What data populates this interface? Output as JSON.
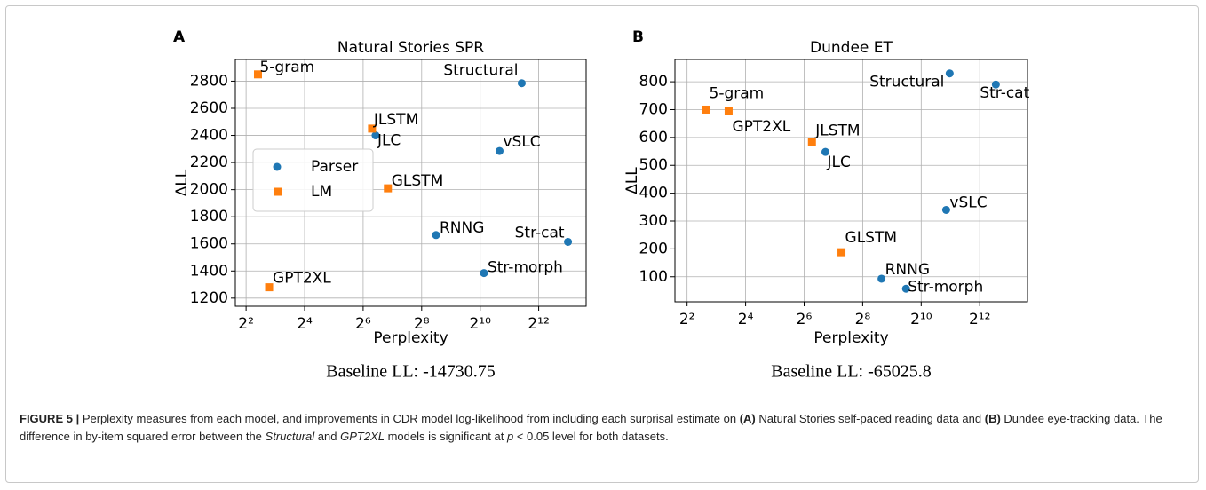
{
  "chart_data": [
    {
      "type": "scatter",
      "panel": "A",
      "title": "Natural Stories SPR",
      "xlabel": "Perplexity",
      "ylabel": "ΔLL",
      "note": "Baseline LL: -14730.75",
      "xscale": "log",
      "xbase": 2,
      "xlim": [
        3.1,
        12600
      ],
      "ylim": [
        1140,
        2960
      ],
      "xticks": [
        {
          "value": 4,
          "label": "2²"
        },
        {
          "value": 16,
          "label": "2⁴"
        },
        {
          "value": 64,
          "label": "2⁶"
        },
        {
          "value": 256,
          "label": "2⁸"
        },
        {
          "value": 1024,
          "label": "2¹⁰"
        },
        {
          "value": 4096,
          "label": "2¹²"
        }
      ],
      "yticks": [
        1200,
        1400,
        1600,
        1800,
        2000,
        2200,
        2400,
        2600,
        2800
      ],
      "grid": true,
      "legend": "center left",
      "series": [
        {
          "name": "Parser",
          "color": "#1f77b4",
          "marker": "circle",
          "labels": [
            "Structural",
            "JLC",
            "vSLC",
            "RNNG",
            "Str-cat",
            "Str-morph"
          ],
          "x": [
            2740,
            86,
            1620,
            360,
            8200,
            1120
          ],
          "values": [
            2785,
            2400,
            2285,
            1665,
            1615,
            1385
          ]
        },
        {
          "name": "LM",
          "color": "#ff7f0e",
          "marker": "square",
          "labels": [
            "5-gram",
            "JLSTM",
            "GLSTM",
            "GPT2XL"
          ],
          "x": [
            5.3,
            79,
            115,
            6.9
          ],
          "values": [
            2850,
            2450,
            2010,
            1280
          ]
        }
      ]
    },
    {
      "type": "scatter",
      "panel": "B",
      "title": "Dundee ET",
      "xlabel": "Perplexity",
      "ylabel": "ΔLL",
      "note": "Baseline LL: -65025.8",
      "xscale": "log",
      "xbase": 2,
      "xlim": [
        3.0,
        12700
      ],
      "ylim": [
        10,
        880
      ],
      "xticks": [
        {
          "value": 4,
          "label": "2²"
        },
        {
          "value": 16,
          "label": "2⁴"
        },
        {
          "value": 64,
          "label": "2⁶"
        },
        {
          "value": 256,
          "label": "2⁸"
        },
        {
          "value": 1024,
          "label": "2¹⁰"
        },
        {
          "value": 4096,
          "label": "2¹²"
        }
      ],
      "yticks": [
        100,
        200,
        300,
        400,
        500,
        600,
        700,
        800
      ],
      "grid": true,
      "series": [
        {
          "color": "#1f77b4",
          "marker": "circle",
          "labels": [
            "Structural",
            "JLC",
            "vSLC",
            "RNNG",
            "Str-cat",
            "Str-morph"
          ],
          "x": [
            2010,
            106,
            1850,
            400,
            6000,
            715
          ],
          "values": [
            830,
            548,
            340,
            93,
            790,
            57
          ]
        },
        {
          "color": "#ff7f0e",
          "marker": "square",
          "labels": [
            "5-gram",
            "GPT2XL",
            "JLSTM",
            "GLSTM"
          ],
          "x": [
            6.2,
            10.7,
            77,
            155
          ],
          "values": [
            700,
            695,
            585,
            188
          ]
        }
      ]
    }
  ],
  "caption": [
    "FIGURE 5 |",
    " Perplexity measures from each model, and improvements in CDR model log-likelihood from including each surprisal estimate on ",
    "(A)",
    " Natural Stories self-paced reading data and ",
    "(B)",
    " Dundee eye-tracking data.  The difference in by-item squared error between the ",
    "Structural",
    " and ",
    "GPT2XL",
    " models is significant at ",
    "p",
    " < 0.05 level for both datasets."
  ]
}
